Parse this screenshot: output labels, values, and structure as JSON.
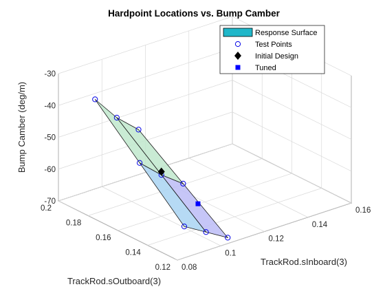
{
  "chart_data": {
    "type": "surface",
    "title": "Hardpoint Locations vs. Bump Camber",
    "xlabel": "TrackRod.sInboard(3)",
    "ylabel": "TrackRod.sOutboard(3)",
    "zlabel": "Bump Camber (deg/m)",
    "xlim": [
      0.08,
      0.16
    ],
    "ylim": [
      0.12,
      0.2
    ],
    "zlim": [
      -70,
      -30
    ],
    "xticks": [
      "0.08",
      "0.1",
      "0.12",
      "0.14",
      "0.16"
    ],
    "yticks": [
      "0.12",
      "0.14",
      "0.16",
      "0.18",
      "0.2"
    ],
    "zticks": [
      "-70",
      "-60",
      "-50",
      "-40",
      "-30"
    ],
    "x": [
      0.09,
      0.1,
      0.11
    ],
    "y": [
      0.13,
      0.16,
      0.19
    ],
    "z": [
      [
        -64,
        -51,
        -38
      ],
      [
        -68,
        -57,
        -46
      ],
      [
        -72,
        -62,
        -52
      ]
    ],
    "colorbands": [
      "#bcbcf6",
      "#a9d4f2",
      "#bfe8cc",
      "#fbe3b9"
    ],
    "test_points": [
      [
        0.09,
        0.13,
        -64
      ],
      [
        0.09,
        0.16,
        -51
      ],
      [
        0.09,
        0.19,
        -38
      ],
      [
        0.1,
        0.13,
        -68
      ],
      [
        0.1,
        0.16,
        -57
      ],
      [
        0.1,
        0.19,
        -46
      ],
      [
        0.11,
        0.13,
        -72
      ],
      [
        0.11,
        0.16,
        -62
      ],
      [
        0.11,
        0.19,
        -52
      ]
    ],
    "initial_design": [
      0.1,
      0.16,
      -56
    ],
    "tuned": [
      0.11,
      0.15,
      -66
    ],
    "grid": true,
    "legend": {
      "placement": "top-right",
      "entries": [
        "Response Surface",
        "Test Points",
        "Initial Design",
        "Tuned"
      ]
    },
    "colors": {
      "surface_swatch": "#20b7c9",
      "test_points": "#0000e6",
      "initial_design": "#000000",
      "tuned": "#0000ff",
      "mesh": "#1a1a1a"
    }
  }
}
